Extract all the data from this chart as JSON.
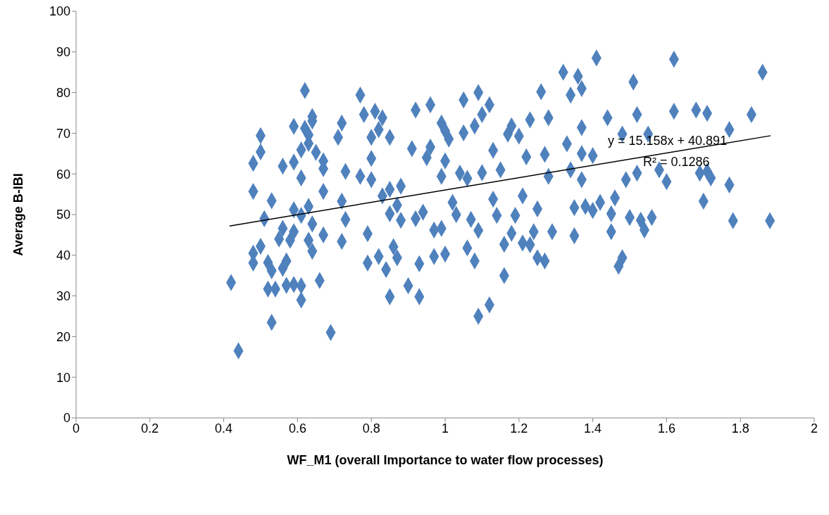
{
  "chart_data": {
    "type": "scatter",
    "xlabel": "WF_M1 (overall Importance to water flow processes)",
    "ylabel": "Average B-IBI",
    "xlim": [
      0,
      2
    ],
    "xticks": [
      0,
      0.2,
      0.4,
      0.6,
      0.8,
      1,
      1.2,
      1.4,
      1.6,
      1.8,
      2
    ],
    "ylim": [
      0,
      100
    ],
    "yticks": [
      0,
      10,
      20,
      30,
      40,
      50,
      60,
      70,
      80,
      90,
      100
    ],
    "annotations": [
      "y = 15.158x + 40.891",
      "R² = 0.1286"
    ],
    "series": [
      {
        "color": "#4f81bd",
        "marker": "diamond",
        "x": [
          0.42,
          0.44,
          0.48,
          0.48,
          0.48,
          0.48,
          0.5,
          0.5,
          0.5,
          0.51,
          0.52,
          0.52,
          0.53,
          0.53,
          0.53,
          0.54,
          0.55,
          0.56,
          0.56,
          0.56,
          0.57,
          0.57,
          0.58,
          0.59,
          0.59,
          0.59,
          0.59,
          0.59,
          0.61,
          0.61,
          0.61,
          0.61,
          0.61,
          0.62,
          0.62,
          0.63,
          0.63,
          0.63,
          0.63,
          0.64,
          0.64,
          0.64,
          0.64,
          0.65,
          0.66,
          0.67,
          0.67,
          0.67,
          0.67,
          0.69,
          0.71,
          0.72,
          0.72,
          0.72,
          0.73,
          0.73,
          0.77,
          0.78,
          0.77,
          0.79,
          0.79,
          0.8,
          0.8,
          0.8,
          0.81,
          0.82,
          0.82,
          0.83,
          0.83,
          0.84,
          0.85,
          0.85,
          0.85,
          0.85,
          0.86,
          0.87,
          0.87,
          0.88,
          0.88,
          0.9,
          0.93,
          0.93,
          0.91,
          0.92,
          0.92,
          0.94,
          0.95,
          0.96,
          0.96,
          0.97,
          0.97,
          0.99,
          0.99,
          0.99,
          1.0,
          1.0,
          1.0,
          1.01,
          1.02,
          1.03,
          1.04,
          1.05,
          1.05,
          1.06,
          1.06,
          1.07,
          1.08,
          1.08,
          1.09,
          1.09,
          1.09,
          1.1,
          1.1,
          1.12,
          1.12,
          1.13,
          1.13,
          1.14,
          1.15,
          1.16,
          1.16,
          1.17,
          1.18,
          1.18,
          1.19,
          1.2,
          1.21,
          1.21,
          1.22,
          1.23,
          1.23,
          1.24,
          1.25,
          1.25,
          1.26,
          1.27,
          1.27,
          1.28,
          1.28,
          1.29,
          1.32,
          1.33,
          1.34,
          1.34,
          1.35,
          1.35,
          1.36,
          1.37,
          1.37,
          1.37,
          1.37,
          1.38,
          1.4,
          1.4,
          1.41,
          1.42,
          1.44,
          1.45,
          1.45,
          1.46,
          1.47,
          1.48,
          1.48,
          1.49,
          1.5,
          1.51,
          1.52,
          1.52,
          1.53,
          1.54,
          1.55,
          1.56,
          1.58,
          1.6,
          1.62,
          1.62,
          1.68,
          1.69,
          1.7,
          1.71,
          1.71,
          1.72,
          1.77,
          1.77,
          1.78,
          1.83,
          1.86,
          1.88
        ],
        "values": [
          33.3,
          16.5,
          55.7,
          62.6,
          40.5,
          38.1,
          69.4,
          65.4,
          42.2,
          49,
          38.2,
          31.7,
          53.4,
          36.2,
          23.5,
          31.7,
          44,
          61.9,
          36.8,
          46.6,
          32.6,
          38.6,
          43.7,
          51.2,
          32.8,
          62.9,
          45.8,
          71.7,
          65.9,
          32.5,
          29,
          59,
          49.8,
          71.2,
          80.5,
          67.5,
          52,
          69.6,
          43.7,
          73,
          47.7,
          41,
          74.1,
          65.3,
          33.8,
          61.3,
          63.2,
          55.7,
          45,
          21,
          69,
          72.5,
          43.4,
          53.3,
          48.8,
          60.6,
          79.4,
          74.6,
          59.4,
          38.1,
          45.3,
          63.8,
          69,
          58.6,
          75.4,
          70.9,
          39.7,
          54.6,
          73.8,
          36.5,
          50.2,
          56.2,
          29.8,
          69,
          42.1,
          52.3,
          39.4,
          48.6,
          57,
          32.5,
          29.8,
          37.9,
          66.2,
          75.7,
          49,
          50.6,
          64,
          66.6,
          77,
          46.2,
          39.7,
          72.5,
          59.4,
          46.6,
          70.6,
          40.3,
          63.2,
          68.6,
          53,
          50,
          60.2,
          78.2,
          70.1,
          41.8,
          58.9,
          48.8,
          71.8,
          38.6,
          25,
          80,
          46.1,
          60.3,
          74.6,
          27.8,
          77,
          65.8,
          53.8,
          49.8,
          61,
          35,
          42.7,
          69.8,
          71.8,
          45.4,
          49.8,
          69.3,
          43,
          54.6,
          64.2,
          73.3,
          42.6,
          45.8,
          51.4,
          39.4,
          80.2,
          64.8,
          38.6,
          73.8,
          59.4,
          45.8,
          85,
          67.4,
          79.4,
          61,
          51.7,
          44.8,
          84,
          81,
          71.4,
          65,
          58.6,
          52,
          64.5,
          51,
          88.5,
          53,
          73.8,
          50.2,
          45.8,
          54.1,
          37.3,
          39.4,
          69.8,
          58.6,
          49.3,
          82.6,
          74.6,
          60.2,
          48.6,
          46.2,
          69.8,
          49.3,
          61,
          58.1,
          88.2,
          75.4,
          75.7,
          60.2,
          53.3,
          74.9,
          60.6,
          59,
          70.9,
          57.3,
          48.5,
          74.6,
          85,
          48.5
        ]
      },
      {
        "type": "line",
        "color": "#000000",
        "marker": "none",
        "x": [
          0.416,
          1.882
        ],
        "values": [
          47.2,
          69.4
        ]
      }
    ]
  }
}
